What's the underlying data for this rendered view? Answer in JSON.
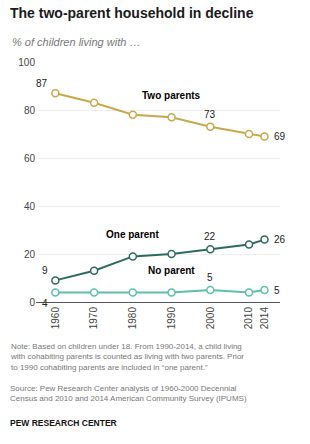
{
  "chart_data": {
    "type": "line",
    "title": "The two-parent household in decline",
    "subtitle": "% of children living with …",
    "x": [
      1960,
      1970,
      1980,
      1990,
      2000,
      2010,
      2014
    ],
    "series": [
      {
        "name": "Two parents",
        "color": "#C8A84B",
        "values": [
          87,
          83,
          78,
          77,
          73,
          70,
          69
        ]
      },
      {
        "name": "One parent",
        "color": "#2E6B5E",
        "values": [
          9,
          13,
          19,
          20,
          22,
          24,
          26
        ]
      },
      {
        "name": "No parent",
        "color": "#5DBFAD",
        "values": [
          4,
          4,
          4,
          4,
          5,
          4,
          5
        ]
      }
    ],
    "annotations": [
      {
        "x": 1960,
        "y": 87,
        "text": "87"
      },
      {
        "x": 2000,
        "y": 73,
        "text": "73"
      },
      {
        "x": 2014,
        "y": 69,
        "text": "69"
      },
      {
        "x": 1960,
        "y": 9,
        "text": "9"
      },
      {
        "x": 2000,
        "y": 22,
        "text": "22"
      },
      {
        "x": 2014,
        "y": 26,
        "text": "26"
      },
      {
        "x": 1960,
        "y": 4,
        "text": "4"
      },
      {
        "x": 2000,
        "y": 5,
        "text": "5"
      },
      {
        "x": 2014,
        "y": 5,
        "text": "5"
      }
    ],
    "xlim": [
      1955,
      2018
    ],
    "xticks": [
      1960,
      1970,
      1980,
      1990,
      2000,
      2010,
      2014
    ],
    "ylim": [
      0,
      100
    ],
    "yticks": [
      0,
      20,
      40,
      60,
      80,
      100
    ],
    "grid": true,
    "marker": "circle",
    "line_style": "solid",
    "note": "Note: Based on children under 18. From 1990-2014, a child living\nwith cohabiting parents is counted as living with two parents. Prior\nto 1990 cohabiting parents are included in “one parent.”",
    "source": "Source: Pew Research Center analysis of 1960-2000 Decennial\nCensus and 2010 and 2014 American Community Survey (IPUMS)",
    "credit": "PEW RESEARCH CENTER"
  }
}
